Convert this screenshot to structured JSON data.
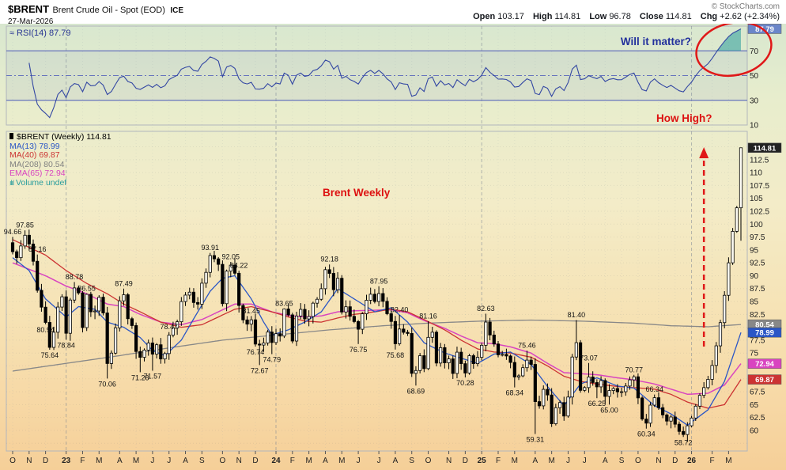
{
  "header": {
    "symbol": "$BRENT",
    "title": "Brent Crude Oil - Spot (EOD)",
    "exchange": "ICE",
    "date": "27-Mar-2026",
    "copyright": "© StockCharts.com",
    "quote": {
      "open_label": "Open",
      "open": "103.17",
      "high_label": "High",
      "high": "114.81",
      "low_label": "Low",
      "low": "96.78",
      "close_label": "Close",
      "close": "114.81",
      "chg_label": "Chg",
      "chg": "+2.62 (+2.34%)"
    }
  },
  "rsi_panel": {
    "legend": "RSI(14) 87.79",
    "annotation": "Will it matter?"
  },
  "main_panel": {
    "legend_main": "$BRENT (Weekly) 114.81",
    "legend_ma13": "MA(13) 78.99",
    "legend_ma40": "MA(40) 69.87",
    "legend_ma208": "MA(208) 80.54",
    "legend_ema65": "EMA(65) 72.94",
    "legend_volume": "Volume undef",
    "annotation_center": "Brent Weekly",
    "annotation_right": "How High?"
  },
  "colors": {
    "background_top": "#d8e7cf",
    "background_mid": "#f3ecc8",
    "background_bottom": "#f5cf98",
    "candle": "#000000",
    "candle_up_fill": "#fffef6",
    "ma13": "#2a56c6",
    "ma40": "#cc3333",
    "ma208": "#888888",
    "ema65": "#d944c0",
    "rsi": "#3347a3",
    "rsi_band": "#6673bd",
    "rsi_fill": "#2a9d9d",
    "volume_legend": "#2a9d9d",
    "annotation_red": "#e01818",
    "annotation_blue": "#22309c",
    "tag_price_bg": "#222222",
    "tag_rsi_bg": "#6b86c9",
    "axis_text": "#222222"
  },
  "chart_data": {
    "type": "candlestick",
    "symbol": "$BRENT",
    "timeframe": "weekly",
    "title": "$BRENT Brent Crude Oil - Spot (EOD) ICE, Weekly",
    "start": "Oct 2022",
    "end": "Mar 2026",
    "price_axis_range": [
      56,
      118
    ],
    "rsi_axis_range": [
      10,
      90
    ],
    "rsi_last": 87.79,
    "first_open": 96.4,
    "weekly_closes": [
      94.66,
      93.5,
      95.77,
      97.85,
      96.15,
      92.8,
      87.16,
      83.9,
      80.94,
      76.1,
      79.04,
      83.92,
      85.91,
      78.84,
      85.28,
      87.63,
      86.66,
      79.94,
      86.39,
      83.0,
      83.16,
      85.83,
      82.78,
      72.97,
      74.99,
      79.89,
      85.12,
      86.31,
      81.66,
      80.33,
      75.3,
      74.17,
      75.58,
      76.95,
      74.79,
      76.61,
      73.85,
      74.9,
      78.47,
      79.87,
      81.07,
      84.99,
      86.24,
      86.81,
      84.8,
      84.48,
      88.55,
      90.65,
      93.91,
      93.27,
      92.2,
      84.58,
      90.89,
      92.05,
      90.48,
      84.22,
      81.43,
      80.61,
      81.45,
      76.74,
      76.55,
      76.95,
      79.07,
      77.04,
      78.76,
      78.29,
      83.55,
      82.4,
      77.33,
      82.19,
      83.47,
      81.62,
      82.08,
      84.67,
      85.43,
      87.48,
      91.17,
      90.45,
      87.29,
      89.5,
      82.96,
      83.98,
      82.12,
      81.11,
      79.62,
      82.62,
      85.24,
      86.41,
      85.0,
      86.54,
      85.03,
      82.63,
      81.13,
      76.81,
      79.66,
      79.02,
      78.8,
      71.06,
      71.61,
      74.49,
      71.98,
      78.05,
      79.04,
      73.06,
      76.05,
      73.1,
      73.87,
      71.04,
      75.17,
      72.94,
      71.12,
      74.49,
      72.94,
      74.17,
      76.51,
      81.01,
      78.5,
      76.76,
      74.66,
      74.74,
      74.43,
      73.18,
      70.36,
      70.58,
      72.16,
      73.63,
      72.8,
      65.58,
      64.76,
      67.96,
      66.87,
      61.29,
      64.4,
      65.4,
      62.78,
      66.47,
      74.23,
      77.01,
      67.77,
      68.3,
      70.36,
      69.28,
      68.44,
      69.67,
      66.59,
      67.73,
      68.12,
      67.48,
      67.5,
      68.6,
      69.8,
      70.4,
      66.3,
      62.2,
      61.4,
      64.9,
      66.34,
      64.4,
      63.0,
      61.8,
      62.6,
      61.2,
      59.8,
      59.2,
      60.9,
      62.4,
      64.7,
      66.8,
      68.3,
      69.9,
      72.6,
      76.4,
      80.9,
      86.2,
      92.5,
      98.6,
      103.17,
      114.81
    ],
    "last_candle": {
      "open": 103.17,
      "high": 114.81,
      "low": 96.78,
      "close": 114.81
    },
    "high_overrides": {
      "15": 88.78,
      "18": 86.55,
      "27": 87.49,
      "66": 83.65,
      "77": 92.18,
      "89": 87.95,
      "94": 82.4,
      "101": 81.16,
      "115": 82.63,
      "125": 75.46,
      "137": 81.4,
      "140": 73.07,
      "151": 70.77,
      "177": 114.81
    },
    "low_overrides": {
      "9": 75.64,
      "23": 70.06,
      "31": 71.28,
      "34": 71.57,
      "60": 72.67,
      "63": 74.79,
      "84": 76.75,
      "93": 75.68,
      "98": 68.69,
      "110": 70.28,
      "122": 68.34,
      "127": 59.31,
      "142": 66.25,
      "145": 65.0,
      "154": 60.34,
      "163": 58.72,
      "177": 96.78
    },
    "price_labels": [
      {
        "t": "94.66",
        "i": 0,
        "s": "above"
      },
      {
        "t": "97.85",
        "i": 3,
        "s": "above"
      },
      {
        "t": "87.16",
        "i": 6,
        "s": "above"
      },
      {
        "t": "80.94",
        "i": 8,
        "s": "below"
      },
      {
        "t": "75.64",
        "i": 9,
        "s": "below"
      },
      {
        "t": "78.84",
        "i": 13,
        "s": "below"
      },
      {
        "t": "88.78",
        "i": 15,
        "s": "above"
      },
      {
        "t": "86.55",
        "i": 18,
        "s": "above"
      },
      {
        "t": "70.06",
        "i": 23,
        "s": "below"
      },
      {
        "t": "87.49",
        "i": 27,
        "s": "above"
      },
      {
        "t": "71.28",
        "i": 31,
        "s": "below"
      },
      {
        "t": "71.57",
        "i": 34,
        "s": "below"
      },
      {
        "t": "78.47",
        "i": 38,
        "s": "above"
      },
      {
        "t": "93.91",
        "i": 48,
        "s": "above"
      },
      {
        "t": "92.05",
        "i": 53,
        "s": "above"
      },
      {
        "t": "84.22",
        "i": 55,
        "s": "above"
      },
      {
        "t": "81.45",
        "i": 58,
        "s": "above"
      },
      {
        "t": "76.74",
        "i": 59,
        "s": "below"
      },
      {
        "t": "72.67",
        "i": 60,
        "s": "below"
      },
      {
        "t": "74.79",
        "i": 63,
        "s": "below"
      },
      {
        "t": "83.65",
        "i": 66,
        "s": "above"
      },
      {
        "t": "92.18",
        "i": 77,
        "s": "above"
      },
      {
        "t": "76.75",
        "i": 84,
        "s": "below"
      },
      {
        "t": "87.95",
        "i": 89,
        "s": "above"
      },
      {
        "t": "75.68",
        "i": 93,
        "s": "below"
      },
      {
        "t": "82.40",
        "i": 94,
        "s": "above"
      },
      {
        "t": "68.69",
        "i": 98,
        "s": "below"
      },
      {
        "t": "81.16",
        "i": 101,
        "s": "above"
      },
      {
        "t": "70.28",
        "i": 110,
        "s": "below"
      },
      {
        "t": "82.63",
        "i": 115,
        "s": "above"
      },
      {
        "t": "68.34",
        "i": 122,
        "s": "below"
      },
      {
        "t": "75.46",
        "i": 125,
        "s": "above"
      },
      {
        "t": "59.31",
        "i": 127,
        "s": "below"
      },
      {
        "t": "81.40",
        "i": 137,
        "s": "above"
      },
      {
        "t": "73.07",
        "i": 140,
        "s": "above"
      },
      {
        "t": "66.25",
        "i": 142,
        "s": "below"
      },
      {
        "t": "65.00",
        "i": 145,
        "s": "below"
      },
      {
        "t": "70.77",
        "i": 151,
        "s": "above"
      },
      {
        "t": "60.34",
        "i": 154,
        "s": "below"
      },
      {
        "t": "66.34",
        "i": 156,
        "s": "above"
      },
      {
        "t": "58.72",
        "i": 163,
        "s": "below"
      }
    ],
    "month_starts": [
      0,
      4,
      8,
      13,
      17,
      21,
      26,
      30,
      34,
      38,
      42,
      46,
      51,
      55,
      59,
      64,
      68,
      72,
      76,
      80,
      84,
      89,
      93,
      97,
      101,
      106,
      110,
      114,
      118,
      122,
      127,
      131,
      135,
      139,
      144,
      148,
      152,
      157,
      161,
      165,
      170,
      174
    ],
    "month_labels": [
      "O",
      "N",
      "D",
      "23",
      "F",
      "M",
      "A",
      "M",
      "J",
      "J",
      "A",
      "S",
      "O",
      "N",
      "D",
      "24",
      "F",
      "M",
      "A",
      "M",
      "J",
      "J",
      "A",
      "S",
      "O",
      "N",
      "D",
      "25",
      "F",
      "M",
      "A",
      "M",
      "J",
      "J",
      "A",
      "S",
      "O",
      "N",
      "D",
      "26",
      "F",
      "M"
    ],
    "year_tick_indices": [
      3,
      15,
      27,
      39
    ],
    "price_ticks": [
      "112.5",
      "110",
      "107.5",
      "105",
      "102.5",
      "100",
      "97.5",
      "95",
      "92.5",
      "90",
      "87.5",
      "85",
      "82.5",
      "77.5",
      "75",
      "67.5",
      "65",
      "62.5",
      "60"
    ],
    "rsi_ticks": [
      70,
      50,
      30,
      10
    ],
    "rsi_lines": {
      "overbought": 70,
      "mid": 50,
      "oversold": 30
    },
    "ma_anchors": {
      "ma13": [
        [
          0,
          93.5
        ],
        [
          4,
          91
        ],
        [
          8,
          85.5
        ],
        [
          13,
          82
        ],
        [
          16,
          84
        ],
        [
          20,
          83.5
        ],
        [
          23,
          81
        ],
        [
          27,
          80
        ],
        [
          31,
          78
        ],
        [
          34,
          75.5
        ],
        [
          37,
          74.5
        ],
        [
          41,
          77.5
        ],
        [
          45,
          83
        ],
        [
          48,
          87
        ],
        [
          51,
          89.5
        ],
        [
          54,
          90
        ],
        [
          58,
          85.5
        ],
        [
          61,
          81
        ],
        [
          63,
          78.5
        ],
        [
          67,
          79.5
        ],
        [
          71,
          81
        ],
        [
          75,
          83
        ],
        [
          79,
          87.5
        ],
        [
          83,
          85.5
        ],
        [
          88,
          83
        ],
        [
          92,
          83.8
        ],
        [
          96,
          81
        ],
        [
          100,
          77
        ],
        [
          105,
          75
        ],
        [
          109,
          74
        ],
        [
          113,
          73
        ],
        [
          117,
          74.8
        ],
        [
          121,
          75.2
        ],
        [
          126,
          72.8
        ],
        [
          130,
          68.5
        ],
        [
          134,
          64.8
        ],
        [
          138,
          69
        ],
        [
          142,
          70.2
        ],
        [
          147,
          68.6
        ],
        [
          151,
          68.2
        ],
        [
          156,
          64.8
        ],
        [
          160,
          63.2
        ],
        [
          164,
          61
        ],
        [
          169,
          64
        ],
        [
          173,
          69.5
        ],
        [
          177,
          78.99
        ]
      ],
      "ma40": [
        [
          0,
          97
        ],
        [
          8,
          94
        ],
        [
          13,
          91
        ],
        [
          18,
          88.5
        ],
        [
          23,
          86.5
        ],
        [
          27,
          84.5
        ],
        [
          31,
          83
        ],
        [
          36,
          81
        ],
        [
          41,
          80
        ],
        [
          46,
          80.5
        ],
        [
          50,
          82
        ],
        [
          54,
          83.5
        ],
        [
          58,
          84
        ],
        [
          63,
          83
        ],
        [
          67,
          82
        ],
        [
          71,
          81.2
        ],
        [
          75,
          81
        ],
        [
          79,
          81.8
        ],
        [
          83,
          82.5
        ],
        [
          88,
          83
        ],
        [
          92,
          83.5
        ],
        [
          96,
          83
        ],
        [
          100,
          81.5
        ],
        [
          105,
          79.5
        ],
        [
          109,
          77.5
        ],
        [
          113,
          75.8
        ],
        [
          117,
          75.2
        ],
        [
          121,
          75
        ],
        [
          126,
          74.2
        ],
        [
          130,
          72.5
        ],
        [
          134,
          70.5
        ],
        [
          138,
          69.5
        ],
        [
          142,
          69
        ],
        [
          147,
          68.5
        ],
        [
          151,
          68.3
        ],
        [
          156,
          68
        ],
        [
          160,
          67
        ],
        [
          164,
          65.5
        ],
        [
          169,
          64.3
        ],
        [
          173,
          65
        ],
        [
          177,
          69.87
        ]
      ],
      "ma208": [
        [
          0,
          71.5
        ],
        [
          13,
          73
        ],
        [
          26,
          74.5
        ],
        [
          38,
          76
        ],
        [
          51,
          77.5
        ],
        [
          64,
          78.5
        ],
        [
          77,
          79.5
        ],
        [
          90,
          80.3
        ],
        [
          101,
          80.8
        ],
        [
          114,
          81.2
        ],
        [
          126,
          81.4
        ],
        [
          138,
          81.2
        ],
        [
          151,
          80.8
        ],
        [
          160,
          80.3
        ],
        [
          169,
          80.1
        ],
        [
          177,
          80.54
        ]
      ],
      "ema65": [
        [
          0,
          92.5
        ],
        [
          8,
          90
        ],
        [
          13,
          88
        ],
        [
          18,
          86.5
        ],
        [
          23,
          84.5
        ],
        [
          27,
          84
        ],
        [
          31,
          82.5
        ],
        [
          36,
          81
        ],
        [
          41,
          80.5
        ],
        [
          46,
          81.5
        ],
        [
          50,
          83
        ],
        [
          54,
          84.5
        ],
        [
          58,
          84.5
        ],
        [
          63,
          83
        ],
        [
          67,
          82.3
        ],
        [
          71,
          82
        ],
        [
          75,
          82.2
        ],
        [
          79,
          83
        ],
        [
          83,
          83.2
        ],
        [
          88,
          83.3
        ],
        [
          92,
          83.4
        ],
        [
          96,
          82.8
        ],
        [
          100,
          81.3
        ],
        [
          105,
          79.8
        ],
        [
          109,
          78.3
        ],
        [
          113,
          77
        ],
        [
          117,
          76.8
        ],
        [
          121,
          76.2
        ],
        [
          126,
          75
        ],
        [
          130,
          73
        ],
        [
          134,
          71.2
        ],
        [
          138,
          71
        ],
        [
          142,
          70.8
        ],
        [
          147,
          70.2
        ],
        [
          151,
          69.8
        ],
        [
          156,
          69
        ],
        [
          160,
          68
        ],
        [
          164,
          67
        ],
        [
          169,
          67.2
        ],
        [
          173,
          68.8
        ],
        [
          177,
          72.94
        ]
      ]
    },
    "axis_tags": {
      "price": "114.81",
      "ma13": "78.99",
      "ma40": "69.87",
      "ma208": "80.54",
      "ema65": "72.94",
      "rsi": "87.79"
    }
  }
}
